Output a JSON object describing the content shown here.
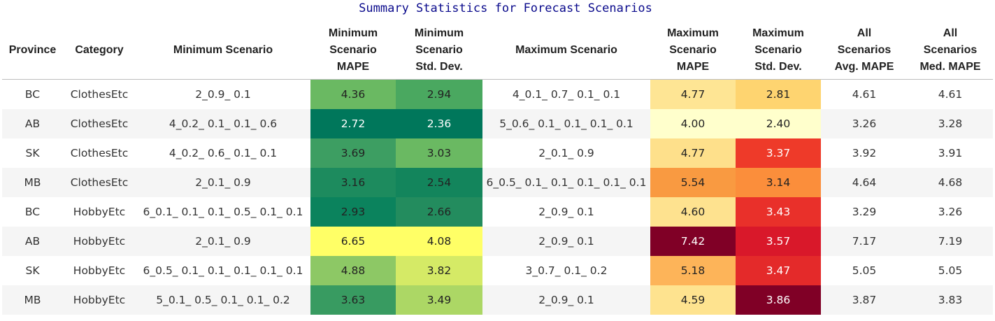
{
  "caption": "Summary Statistics for Forecast Scenarios",
  "columns": [
    [
      "Province"
    ],
    [
      "Category"
    ],
    [
      "Minimum Scenario"
    ],
    [
      "Minimum",
      "Scenario",
      "MAPE"
    ],
    [
      "Minimum",
      "Scenario",
      "Std. Dev."
    ],
    [
      "Maximum Scenario"
    ],
    [
      "Maximum",
      "Scenario",
      "MAPE"
    ],
    [
      "Maximum",
      "Scenario",
      "Std. Dev."
    ],
    [
      "All",
      "Scenarios",
      "Avg. MAPE"
    ],
    [
      "All",
      "Scenarios",
      "Med. MAPE"
    ]
  ],
  "rows": [
    {
      "province": "BC",
      "category": "ClothesEtc",
      "min_scenario": "2_0.9_ 0.1",
      "min_mape": "4.36",
      "min_sd": "2.94",
      "max_scenario": "4_0.1_ 0.7_ 0.1_ 0.1",
      "max_mape": "4.77",
      "max_sd": "2.81",
      "avg_mape": "4.61",
      "med_mape": "4.61",
      "colors": {
        "min_mape": "#6ab962",
        "min_sd": "#4aa860",
        "max_mape": "#fee594",
        "max_sd": "#fed470"
      },
      "light": {}
    },
    {
      "province": "AB",
      "category": "ClothesEtc",
      "min_scenario": "4_0.2_ 0.1_ 0.1_ 0.6",
      "min_mape": "2.72",
      "min_sd": "2.36",
      "max_scenario": "5_0.6_ 0.1_ 0.1_ 0.1_ 0.1",
      "max_mape": "4.00",
      "max_sd": "2.40",
      "avg_mape": "3.26",
      "med_mape": "3.28",
      "colors": {
        "min_mape": "#00775b",
        "min_sd": "#00775b",
        "max_mape": "#ffffcc",
        "max_sd": "#ffffcc"
      },
      "light": {
        "min_mape": true,
        "min_sd": true
      }
    },
    {
      "province": "SK",
      "category": "ClothesEtc",
      "min_scenario": "4_0.2_ 0.6_ 0.1_ 0.1",
      "min_mape": "3.69",
      "min_sd": "3.03",
      "max_scenario": "2_0.1_ 0.9",
      "max_mape": "4.77",
      "max_sd": "3.37",
      "avg_mape": "3.92",
      "med_mape": "3.91",
      "colors": {
        "min_mape": "#3d9e62",
        "min_sd": "#6ab962",
        "max_mape": "#fee08b",
        "max_sd": "#ee3a29"
      },
      "light": {
        "max_sd": true
      }
    },
    {
      "province": "MB",
      "category": "ClothesEtc",
      "min_scenario": "2_0.1_ 0.9",
      "min_mape": "3.16",
      "min_sd": "2.54",
      "max_scenario": "6_0.5_ 0.1_ 0.1_ 0.1_ 0.1_ 0.1",
      "max_mape": "5.54",
      "max_sd": "3.14",
      "avg_mape": "4.64",
      "med_mape": "4.68",
      "colors": {
        "min_mape": "#1d8b5e",
        "min_sd": "#13855c",
        "max_mape": "#f99a41",
        "max_sd": "#fb8e3b"
      },
      "light": {}
    },
    {
      "province": "BC",
      "category": "HobbyEtc",
      "min_scenario": "6_0.1_ 0.1_ 0.1_ 0.5_ 0.1_ 0.1",
      "min_mape": "2.93",
      "min_sd": "2.66",
      "max_scenario": "2_0.9_ 0.1",
      "max_mape": "4.60",
      "max_sd": "3.43",
      "avg_mape": "3.29",
      "med_mape": "3.26",
      "colors": {
        "min_mape": "#0b835d",
        "min_sd": "#238c5e",
        "max_mape": "#fee28f",
        "max_sd": "#e9302a"
      },
      "light": {
        "max_sd": true
      }
    },
    {
      "province": "AB",
      "category": "HobbyEtc",
      "min_scenario": "2_0.1_ 0.9",
      "min_mape": "6.65",
      "min_sd": "4.08",
      "max_scenario": "2_0.9_ 0.1",
      "max_mape": "7.42",
      "max_sd": "3.57",
      "avg_mape": "7.17",
      "med_mape": "7.19",
      "colors": {
        "min_mape": "#ffff66",
        "min_sd": "#ffff66",
        "max_mape": "#800026",
        "max_sd": "#d9182a"
      },
      "light": {
        "max_mape": true,
        "max_sd": true
      }
    },
    {
      "province": "SK",
      "category": "HobbyEtc",
      "min_scenario": "6_0.5_ 0.1_ 0.1_ 0.1_ 0.1_ 0.1",
      "min_mape": "4.88",
      "min_sd": "3.82",
      "max_scenario": "3_0.7_ 0.1_ 0.2",
      "max_mape": "5.18",
      "max_sd": "3.47",
      "avg_mape": "5.05",
      "med_mape": "5.05",
      "colors": {
        "min_mape": "#8dc865",
        "min_sd": "#d5ea66",
        "max_mape": "#fdb459",
        "max_sd": "#e42a2a"
      },
      "light": {
        "max_sd": true
      }
    },
    {
      "province": "MB",
      "category": "HobbyEtc",
      "min_scenario": "5_0.1_ 0.5_ 0.1_ 0.1_ 0.2",
      "min_mape": "3.63",
      "min_sd": "3.49",
      "max_scenario": "2_0.9_ 0.1",
      "max_mape": "4.59",
      "max_sd": "3.86",
      "avg_mape": "3.87",
      "med_mape": "3.83",
      "colors": {
        "min_mape": "#389b61",
        "min_sd": "#acd765",
        "max_mape": "#fee38f",
        "max_sd": "#800026"
      },
      "light": {
        "max_sd": true
      }
    }
  ]
}
